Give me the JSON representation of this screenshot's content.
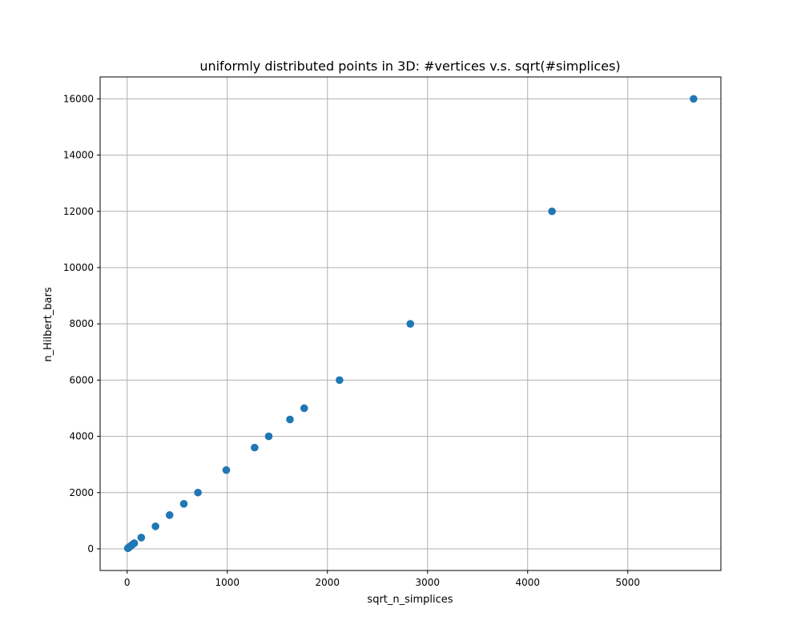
{
  "chart_data": {
    "type": "scatter",
    "title": "uniformly distributed points in 3D: #vertices v.s. sqrt(#simplices)",
    "xlabel": "sqrt_n_simplices",
    "ylabel": "n_Hilbert_bars",
    "xlim": [
      -270,
      5930
    ],
    "ylim": [
      -770,
      16780
    ],
    "xticks": [
      0,
      1000,
      2000,
      3000,
      4000,
      5000
    ],
    "yticks": [
      0,
      2000,
      4000,
      6000,
      8000,
      10000,
      12000,
      14000,
      16000
    ],
    "grid": true,
    "point_color": "#1f77b4",
    "points": [
      {
        "x": 7,
        "y": 20
      },
      {
        "x": 14,
        "y": 40
      },
      {
        "x": 21,
        "y": 60
      },
      {
        "x": 28,
        "y": 80
      },
      {
        "x": 42,
        "y": 120
      },
      {
        "x": 56,
        "y": 160
      },
      {
        "x": 71,
        "y": 200
      },
      {
        "x": 141,
        "y": 400
      },
      {
        "x": 283,
        "y": 800
      },
      {
        "x": 424,
        "y": 1200
      },
      {
        "x": 566,
        "y": 1600
      },
      {
        "x": 707,
        "y": 2000
      },
      {
        "x": 990,
        "y": 2800
      },
      {
        "x": 1273,
        "y": 3600
      },
      {
        "x": 1414,
        "y": 4000
      },
      {
        "x": 1626,
        "y": 4600
      },
      {
        "x": 1768,
        "y": 5000
      },
      {
        "x": 2121,
        "y": 6000
      },
      {
        "x": 2828,
        "y": 8000
      },
      {
        "x": 4243,
        "y": 12000
      },
      {
        "x": 5657,
        "y": 16000
      }
    ]
  }
}
